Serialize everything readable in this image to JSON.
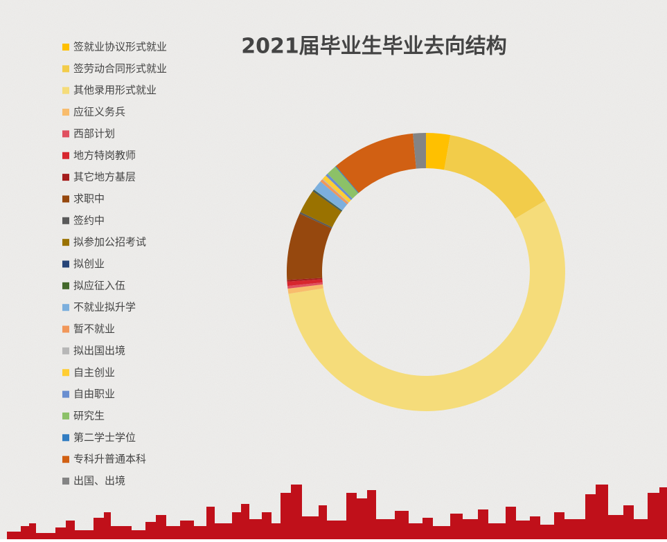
{
  "chart_data": {
    "type": "donut",
    "title": "2021届毕业生毕业去向结构",
    "series": [
      {
        "name": "签就业协议形式就业",
        "color": "#ffc000",
        "values": [
          2.8
        ]
      },
      {
        "name": "签劳动合同形式就业",
        "color": "#f2cc4a",
        "values": [
          13.6
        ]
      },
      {
        "name": "其他录用形式就业",
        "color": "#f5dc7a",
        "values": [
          56.1
        ]
      },
      {
        "name": "应征义务兵",
        "color": "#f8bc6c",
        "values": [
          0.6
        ]
      },
      {
        "name": "西部计划",
        "color": "#e05060",
        "values": [
          0.3
        ]
      },
      {
        "name": "地方特岗教师",
        "color": "#d7262e",
        "values": [
          0.5
        ]
      },
      {
        "name": "其它地方基层",
        "color": "#a51d1d",
        "values": [
          0.2
        ]
      },
      {
        "name": "求职中",
        "color": "#96480e",
        "values": [
          7.8
        ]
      },
      {
        "name": "签约中",
        "color": "#5a5a5a",
        "values": [
          0.2
        ]
      },
      {
        "name": "拟参加公招考试",
        "color": "#9a7200",
        "values": [
          2.8
        ]
      },
      {
        "name": "拟创业",
        "color": "#264478",
        "values": [
          0.1
        ]
      },
      {
        "name": "拟应征入伍",
        "color": "#43682b",
        "values": [
          0.1
        ]
      },
      {
        "name": "不就业拟升学",
        "color": "#7cafdd",
        "values": [
          1.2
        ]
      },
      {
        "name": "暂不就业",
        "color": "#f1975a",
        "values": [
          0.3
        ]
      },
      {
        "name": "拟出国出境",
        "color": "#b7b7b7",
        "values": [
          0.1
        ]
      },
      {
        "name": "自主创业",
        "color": "#ffcd33",
        "values": [
          0.5
        ]
      },
      {
        "name": "自由职业",
        "color": "#698ed0",
        "values": [
          0.3
        ]
      },
      {
        "name": "研究生",
        "color": "#8cc168",
        "values": [
          1.2
        ]
      },
      {
        "name": "第二学士学位",
        "color": "#327dc2",
        "values": [
          0.1
        ]
      },
      {
        "name": "专科升普通本科",
        "color": "#d16013",
        "values": [
          9.7
        ]
      },
      {
        "name": "出国、出境",
        "color": "#848484",
        "values": [
          1.5
        ]
      }
    ]
  }
}
